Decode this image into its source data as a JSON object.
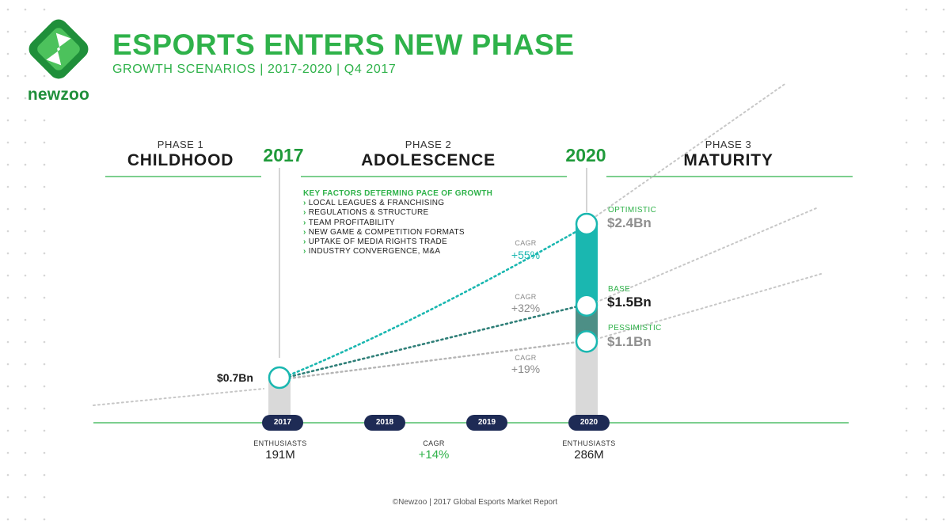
{
  "header": {
    "logo_text": "newzoo",
    "title": "ESPORTS ENTERS NEW PHASE",
    "subtitle": "GROWTH SCENARIOS | 2017-2020 | Q4 2017"
  },
  "phases": [
    {
      "num": "PHASE 1",
      "name": "CHILDHOOD"
    },
    {
      "num": "PHASE 2",
      "name": "ADOLESCENCE"
    },
    {
      "num": "PHASE 3",
      "name": "MATURITY"
    }
  ],
  "years_big": [
    "2017",
    "2020"
  ],
  "key_factors": {
    "heading": "KEY FACTORS DETERMING PACE OF GROWTH",
    "items": [
      "LOCAL LEAGUES & FRANCHISING",
      "REGULATIONS & STRUCTURE",
      "TEAM PROFITABILITY",
      "NEW GAME & COMPETITION FORMATS",
      "UPTAKE OF MEDIA RIGHTS TRADE",
      "INDUSTRY CONVERGENCE, M&A"
    ]
  },
  "colors": {
    "brand_green": "#2fb24a",
    "dark_green": "#1f9a3a",
    "teal": "#1ab7b0",
    "navy": "#1e2b55",
    "gray": "#9a9a9a"
  },
  "chart_data": {
    "type": "line",
    "x": [
      "2017",
      "2018",
      "2019",
      "2020"
    ],
    "start": {
      "year": "2017",
      "value": 0.7,
      "label": "$0.7Bn"
    },
    "series": [
      {
        "name": "OPTIMISTIC",
        "value_2020": 2.4,
        "label": "$2.4Bn",
        "cagr_label": "CAGR",
        "cagr": "+55%",
        "color": "#1ab7b0"
      },
      {
        "name": "BASE",
        "value_2020": 1.5,
        "label": "$1.5Bn",
        "cagr_label": "CAGR",
        "cagr": "+32%",
        "color": "#2f7f78"
      },
      {
        "name": "PESSIMISTIC",
        "value_2020": 1.1,
        "label": "$1.1Bn",
        "cagr_label": "CAGR",
        "cagr": "+19%",
        "color": "#9a9a9a"
      }
    ],
    "enthusiasts": [
      {
        "year": "2017",
        "label": "ENTHUSIASTS",
        "value": "191M"
      },
      {
        "year": "2020",
        "label": "ENTHUSIASTS",
        "value": "286M"
      }
    ],
    "enthusiasts_cagr": {
      "label": "CAGR",
      "value": "+14%"
    }
  },
  "footer": "©Newzoo | 2017 Global Esports Market Report"
}
